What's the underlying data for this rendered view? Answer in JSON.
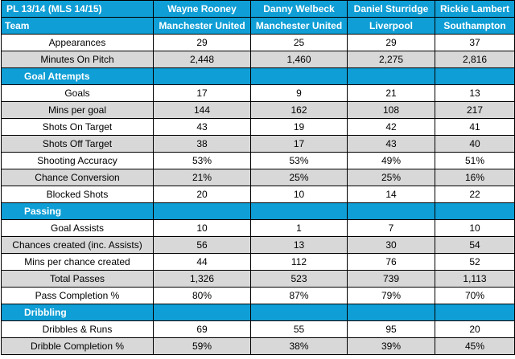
{
  "header": {
    "title": "PL 13/14 (MLS 14/15)",
    "team_label": "Team",
    "players": [
      "Wayne Rooney",
      "Danny Welbeck",
      "Daniel Sturridge",
      "Rickie Lambert"
    ],
    "teams": [
      "Manchester United",
      "Manchester United",
      "Liverpool",
      "Southampton"
    ]
  },
  "sections": [
    {
      "title": "",
      "rows": [
        {
          "label": "Appearances",
          "values": [
            "29",
            "25",
            "29",
            "37"
          ]
        },
        {
          "label": "Minutes On Pitch",
          "values": [
            "2,448",
            "1,460",
            "2,275",
            "2,816"
          ]
        }
      ]
    },
    {
      "title": "Goal Attempts",
      "rows": [
        {
          "label": "Goals",
          "values": [
            "17",
            "9",
            "21",
            "13"
          ]
        },
        {
          "label": "Mins per goal",
          "values": [
            "144",
            "162",
            "108",
            "217"
          ]
        },
        {
          "label": "Shots On Target",
          "values": [
            "43",
            "19",
            "42",
            "41"
          ]
        },
        {
          "label": "Shots Off Target",
          "values": [
            "38",
            "17",
            "43",
            "40"
          ]
        },
        {
          "label": "Shooting Accuracy",
          "values": [
            "53%",
            "53%",
            "49%",
            "51%"
          ]
        },
        {
          "label": "Chance Conversion",
          "values": [
            "21%",
            "25%",
            "25%",
            "16%"
          ]
        },
        {
          "label": "Blocked Shots",
          "values": [
            "20",
            "10",
            "14",
            "22"
          ]
        }
      ]
    },
    {
      "title": "Passing",
      "rows": [
        {
          "label": "Goal Assists",
          "values": [
            "10",
            "1",
            "7",
            "10"
          ]
        },
        {
          "label": "Chances created (inc. Assists)",
          "values": [
            "56",
            "13",
            "30",
            "54"
          ]
        },
        {
          "label": "Mins per chance created",
          "values": [
            "44",
            "112",
            "76",
            "52"
          ]
        },
        {
          "label": "Total Passes",
          "values": [
            "1,326",
            "523",
            "739",
            "1,113"
          ]
        },
        {
          "label": "Pass Completion %",
          "values": [
            "80%",
            "87%",
            "79%",
            "70%"
          ]
        }
      ]
    },
    {
      "title": "Dribbling",
      "rows": [
        {
          "label": "Dribbles & Runs",
          "values": [
            "69",
            "55",
            "95",
            "20"
          ]
        },
        {
          "label": "Dribble Completion %",
          "values": [
            "59%",
            "38%",
            "39%",
            "45%"
          ]
        }
      ]
    }
  ],
  "colors": {
    "header_bg": "#0f9ed5",
    "header_text": "#ffffff",
    "alt_row_bg": "#d8d8d8",
    "row_bg": "#ffffff",
    "border": "#000000"
  }
}
